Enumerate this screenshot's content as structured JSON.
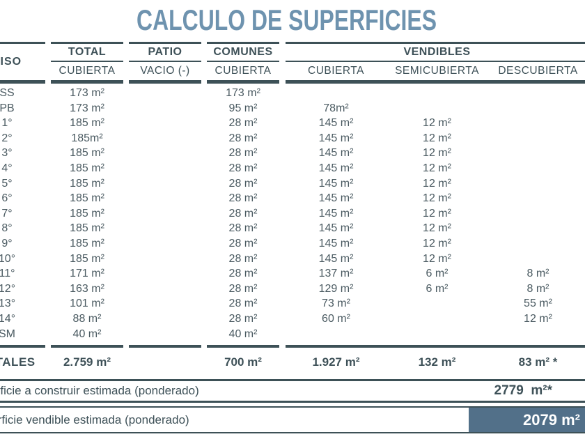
{
  "title": "CALCULO DE SUPERFICIES",
  "colors": {
    "title": "#6e93af",
    "lines": "#3d5157",
    "text": "#4a5a61",
    "header_text": "#3e5158",
    "highlight_box": "#527089",
    "highlight_text": "#ffffff"
  },
  "table": {
    "piso_header": "PISO",
    "groups": {
      "total": {
        "label": "TOTAL",
        "sub": "CUBIERTA"
      },
      "patio": {
        "label": "PATIO",
        "sub": "VACIO (-)"
      },
      "comunes": {
        "label": "COMUNES",
        "sub": "CUBIERTA"
      },
      "vendibles": {
        "label": "VENDIBLES",
        "subs": [
          "CUBIERTA",
          "SEMICUBIERTA",
          "DESCUBIERTA"
        ]
      }
    },
    "rows": [
      {
        "piso": "SS",
        "total": "173 m²",
        "patio": "",
        "comunes": "173 m²",
        "v_cub": "",
        "v_semi": "",
        "v_desc": ""
      },
      {
        "piso": "PB",
        "total": "173 m²",
        "patio": "",
        "comunes": "95 m²",
        "v_cub": "78m²",
        "v_semi": "",
        "v_desc": ""
      },
      {
        "piso": "1°",
        "total": "185 m²",
        "patio": "",
        "comunes": "28 m²",
        "v_cub": "145 m²",
        "v_semi": "12 m²",
        "v_desc": ""
      },
      {
        "piso": "2°",
        "total": "185m²",
        "patio": "",
        "comunes": "28 m²",
        "v_cub": "145 m²",
        "v_semi": "12 m²",
        "v_desc": ""
      },
      {
        "piso": "3°",
        "total": "185 m²",
        "patio": "",
        "comunes": "28 m²",
        "v_cub": "145 m²",
        "v_semi": "12 m²",
        "v_desc": ""
      },
      {
        "piso": "4°",
        "total": "185 m²",
        "patio": "",
        "comunes": "28 m²",
        "v_cub": "145 m²",
        "v_semi": "12 m²",
        "v_desc": ""
      },
      {
        "piso": "5°",
        "total": "185 m²",
        "patio": "",
        "comunes": "28 m²",
        "v_cub": "145 m²",
        "v_semi": "12 m²",
        "v_desc": ""
      },
      {
        "piso": "6°",
        "total": "185 m²",
        "patio": "",
        "comunes": "28 m²",
        "v_cub": "145 m²",
        "v_semi": "12 m²",
        "v_desc": ""
      },
      {
        "piso": "7°",
        "total": "185 m²",
        "patio": "",
        "comunes": "28 m²",
        "v_cub": "145 m²",
        "v_semi": "12 m²",
        "v_desc": ""
      },
      {
        "piso": "8°",
        "total": "185 m²",
        "patio": "",
        "comunes": "28 m²",
        "v_cub": "145 m²",
        "v_semi": "12 m²",
        "v_desc": ""
      },
      {
        "piso": "9°",
        "total": "185 m²",
        "patio": "",
        "comunes": "28 m²",
        "v_cub": "145 m²",
        "v_semi": "12 m²",
        "v_desc": ""
      },
      {
        "piso": "10°",
        "total": "185 m²",
        "patio": "",
        "comunes": "28 m²",
        "v_cub": "145 m²",
        "v_semi": "12 m²",
        "v_desc": ""
      },
      {
        "piso": "11°",
        "total": "171 m²",
        "patio": "",
        "comunes": "28 m²",
        "v_cub": "137 m²",
        "v_semi": "6 m²",
        "v_desc": "8 m²"
      },
      {
        "piso": "12°",
        "total": "163 m²",
        "patio": "",
        "comunes": "28 m²",
        "v_cub": "129 m²",
        "v_semi": "6 m²",
        "v_desc": "8 m²"
      },
      {
        "piso": "13°",
        "total": "101 m²",
        "patio": "",
        "comunes": "28 m²",
        "v_cub": "73 m²",
        "v_semi": "",
        "v_desc": "55 m²"
      },
      {
        "piso": "14°",
        "total": "88 m²",
        "patio": "",
        "comunes": "28 m²",
        "v_cub": "60 m²",
        "v_semi": "",
        "v_desc": "12 m²"
      },
      {
        "piso": "SM",
        "total": "40 m²",
        "patio": "",
        "comunes": "40 m²",
        "v_cub": "",
        "v_semi": "",
        "v_desc": ""
      }
    ],
    "totals": {
      "label": "TOTALES",
      "total": "2.759 m²",
      "patio": "",
      "comunes": "700 m²",
      "v_cub": "1.927 m²",
      "v_semi": "132 m²",
      "v_desc": "83 m² *"
    }
  },
  "summary": [
    {
      "label": "Superficie a construir estimada (ponderado)",
      "value": "2779  m²*"
    },
    {
      "label": "Superficie vendible estimada (ponderado)",
      "value": "2079 m²"
    }
  ]
}
